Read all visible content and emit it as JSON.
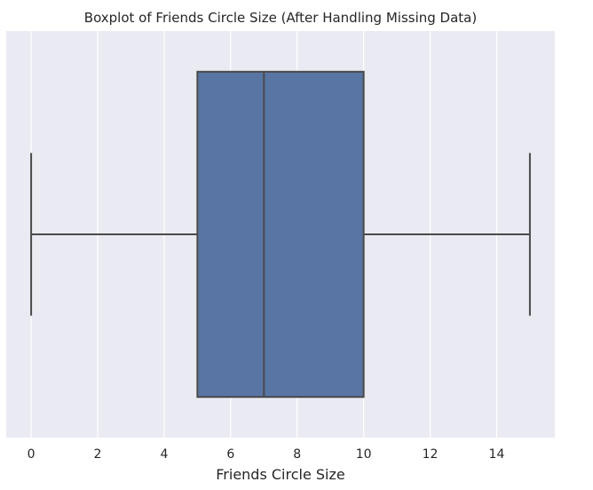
{
  "chart_data": {
    "type": "boxplot",
    "title": "Boxplot of Friends Circle Size (After Handling Missing Data)",
    "xlabel": "Friends Circle Size",
    "ylabel": "",
    "orientation": "horizontal",
    "xlim": [
      -0.75,
      15.75
    ],
    "xticks": [
      0,
      2,
      4,
      6,
      8,
      10,
      12,
      14
    ],
    "xtick_labels": [
      "0",
      "2",
      "4",
      "6",
      "8",
      "10",
      "12",
      "14"
    ],
    "grid": true,
    "box": {
      "whisker_low": 0,
      "q1": 5,
      "median": 7,
      "q3": 10,
      "whisker_high": 15
    },
    "colors": {
      "background": "#eaeaf2",
      "grid": "#ffffff",
      "box_fill": "#5875a4",
      "lines": "#4a4a4a"
    }
  }
}
